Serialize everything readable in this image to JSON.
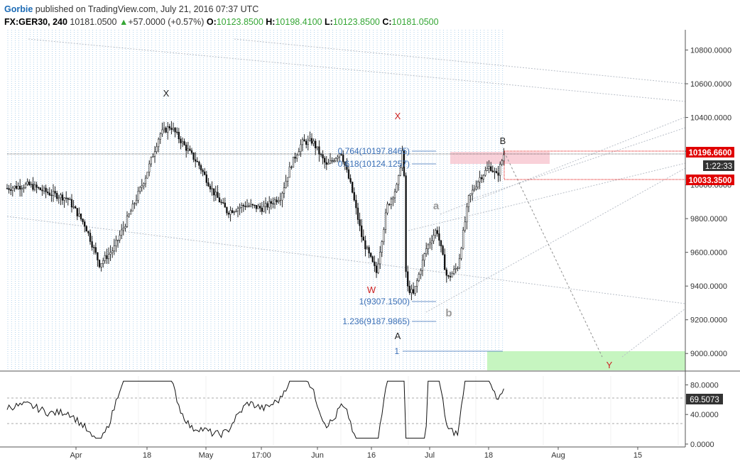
{
  "header": {
    "author": "Gorbie",
    "published": "published on TradingView.com, July 21, 2016 07:37 UTC",
    "symbol": "FX:GER30, 240",
    "last": "10181.0500",
    "change_arrow": "▲",
    "change": "+57.0000 (+0.57%)",
    "o_label": "O:",
    "o_value": "10123.8500",
    "h_label": "H:",
    "h_value": "10198.4100",
    "l_label": "L:",
    "l_value": "10123.8500",
    "c_label": "C:",
    "c_value": "10181.0500"
  },
  "chart_data": {
    "type": "candlestick",
    "price_axis": {
      "ticks": [
        "10800.0000",
        "10600.0000",
        "10400.0000",
        "10200.0000",
        "10000.0000",
        "9800.0000",
        "9600.0000",
        "9400.0000",
        "9200.0000",
        "9000.0000"
      ],
      "tick_values": [
        10800,
        10600,
        10400,
        10200,
        10000,
        9800,
        9600,
        9400,
        9200,
        9000
      ],
      "range": [
        8900,
        10920
      ]
    },
    "price_labels": {
      "high_line": "10196.6600",
      "timer": "1:22:33",
      "low_line": "10033.3500"
    },
    "wave_labels": {
      "x1": "X",
      "x2": "X",
      "w": "W",
      "a_small": "a",
      "b_small": "b",
      "a_big": "A",
      "b_big": "B",
      "y": "Y"
    },
    "fib_labels": {
      "f0764": "0.764(10197.8465)",
      "f0618": "0.618(10124.1257)",
      "f1": "1(9307.1500)",
      "f1236": "1.236(9187.9865)",
      "f1b": "1"
    },
    "oscillator": {
      "ticks": [
        "80.0000",
        "40.0000",
        "0.0000"
      ],
      "tick_values": [
        80,
        40,
        0
      ],
      "range": [
        -2,
        92
      ],
      "current": "69.5073",
      "levels": [
        70,
        30
      ]
    },
    "time_axis": [
      "Apr",
      "18",
      "May",
      "17:00",
      "Jun",
      "16",
      "Jul",
      "18",
      "Aug",
      "15"
    ],
    "colors": {
      "up": "#35a635",
      "level_red": "#e00000",
      "fib": "#3a6fb6",
      "zone_red": "#f7c6cf",
      "zone_green": "#c6f5c0",
      "vgrid": "#7bb3e0"
    }
  }
}
